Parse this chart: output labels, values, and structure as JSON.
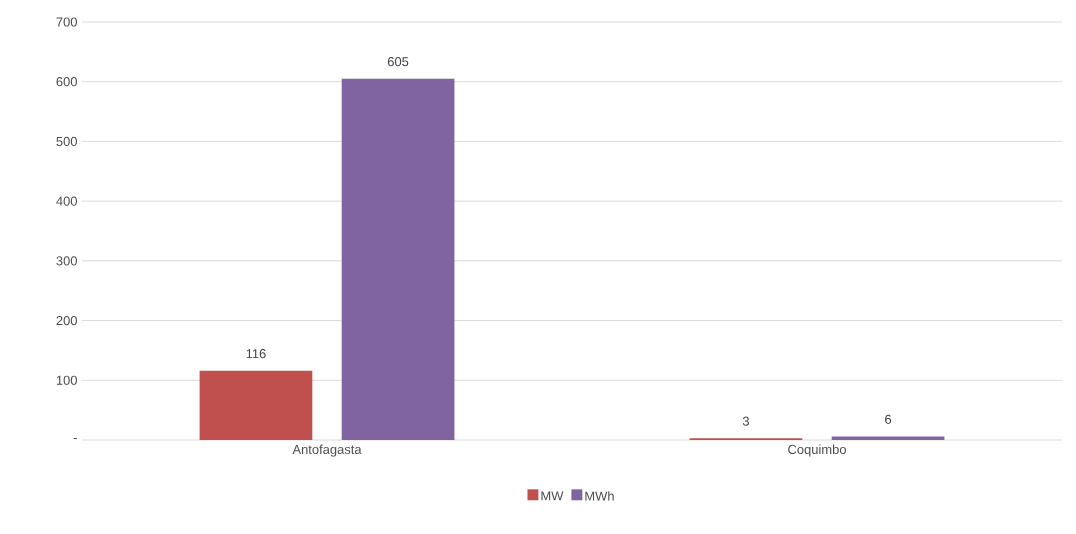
{
  "chart_data": {
    "type": "bar",
    "categories": [
      "Antofagasta",
      "Coquimbo"
    ],
    "series": [
      {
        "name": "MW",
        "color": "#c0504d",
        "values": [
          116,
          3
        ]
      },
      {
        "name": "MWh",
        "color": "#8064a2",
        "values": [
          605,
          6
        ]
      }
    ],
    "ylim": [
      0,
      700
    ],
    "yticks": [
      {
        "value": 0,
        "label": "-"
      },
      100,
      200,
      300,
      400,
      500,
      600,
      700
    ],
    "grid": "y",
    "legend": "bottom",
    "data_labels": true
  }
}
